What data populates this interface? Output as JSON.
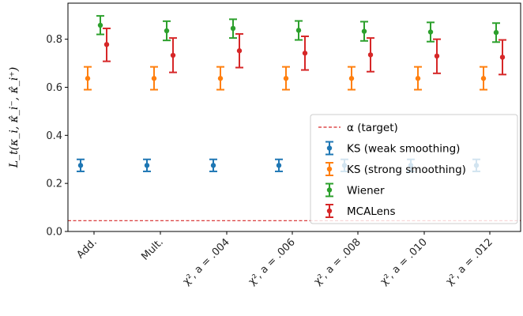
{
  "chart_data": {
    "type": "scatter",
    "variant": "errorbar",
    "ylabel": "L_t(κ_i, κ̂_i⁻, κ̂_i⁺)",
    "ylim": [
      0.0,
      0.95
    ],
    "yticks": [
      0.0,
      0.2,
      0.4,
      0.6,
      0.8
    ],
    "ytick_labels": [
      "0.0",
      "0.2",
      "0.4",
      "0.6",
      "0.8"
    ],
    "grid": false,
    "legend_position": "lower-right",
    "categories": [
      "Add.",
      "Mult.",
      "χ², a = .004",
      "χ², a = .006",
      "χ², a = .008",
      "χ², a = .010",
      "χ², a = .012"
    ],
    "series": [
      {
        "name": "KS (weak smoothing)",
        "color": "#1f77b4",
        "values": [
          0.275,
          0.275,
          0.275,
          0.275,
          0.275,
          0.275,
          0.275
        ],
        "lower": [
          0.25,
          0.25,
          0.25,
          0.25,
          0.25,
          0.25,
          0.25
        ],
        "upper": [
          0.3,
          0.3,
          0.3,
          0.3,
          0.3,
          0.3,
          0.3
        ]
      },
      {
        "name": "KS (strong smoothing)",
        "color": "#ff7f0e",
        "values": [
          0.637,
          0.637,
          0.637,
          0.637,
          0.637,
          0.637,
          0.637
        ],
        "lower": [
          0.59,
          0.59,
          0.59,
          0.59,
          0.59,
          0.59,
          0.59
        ],
        "upper": [
          0.685,
          0.685,
          0.685,
          0.685,
          0.685,
          0.685,
          0.685
        ]
      },
      {
        "name": "Wiener",
        "color": "#2ca02c",
        "values": [
          0.858,
          0.835,
          0.845,
          0.837,
          0.833,
          0.83,
          0.828
        ],
        "lower": [
          0.82,
          0.795,
          0.805,
          0.797,
          0.793,
          0.79,
          0.788
        ],
        "upper": [
          0.897,
          0.875,
          0.883,
          0.876,
          0.873,
          0.87,
          0.867
        ]
      },
      {
        "name": "MCALens",
        "color": "#d62728",
        "values": [
          0.778,
          0.733,
          0.752,
          0.742,
          0.735,
          0.73,
          0.725
        ],
        "lower": [
          0.708,
          0.662,
          0.682,
          0.672,
          0.665,
          0.658,
          0.653
        ],
        "upper": [
          0.845,
          0.805,
          0.822,
          0.812,
          0.805,
          0.8,
          0.797
        ]
      }
    ],
    "reference_line": {
      "name": "α (target)",
      "value": 0.045,
      "color": "#d62728",
      "style": "dashed"
    }
  }
}
